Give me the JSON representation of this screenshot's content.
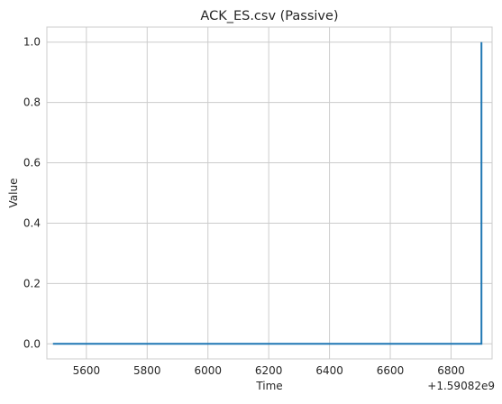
{
  "chart_data": {
    "type": "line",
    "title": "ACK_ES.csv (Passive)",
    "xlabel": "Time",
    "ylabel": "Value",
    "x_offset_label": "+1.59082e9",
    "x_ticks": [
      "5600",
      "5800",
      "6000",
      "6200",
      "6400",
      "6600",
      "6800"
    ],
    "y_ticks": [
      "0.0",
      "0.2",
      "0.4",
      "0.6",
      "0.8",
      "1.0"
    ],
    "xlim": [
      5470,
      6935
    ],
    "ylim": [
      -0.05,
      1.05
    ],
    "grid": true,
    "series_color": "#1f77b4",
    "series": [
      {
        "x": [
          5490,
          6900,
          6900
        ],
        "y": [
          0.0,
          0.0,
          1.0
        ]
      }
    ]
  }
}
